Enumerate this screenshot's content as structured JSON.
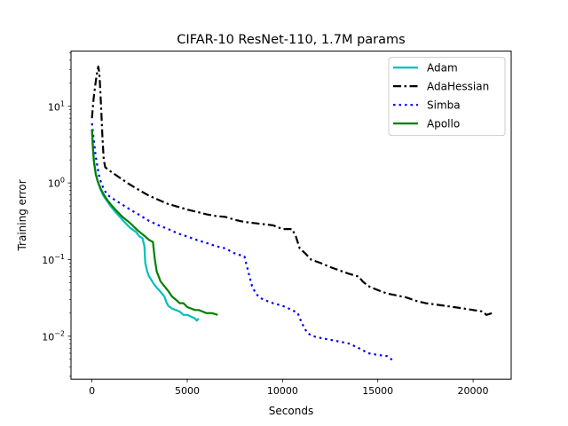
{
  "chart_data": {
    "type": "line",
    "title": "CIFAR-10 ResNet-110, 1.7M params",
    "xlabel": "Seconds",
    "ylabel": "Training error",
    "xlim": [
      -1100,
      22000
    ],
    "ylim_log10": [
      -2.56,
      1.72
    ],
    "yscale": "log",
    "xticks": [
      {
        "value": 0,
        "label": "0"
      },
      {
        "value": 5000,
        "label": "5000"
      },
      {
        "value": 10000,
        "label": "10000"
      },
      {
        "value": 15000,
        "label": "15000"
      },
      {
        "value": 20000,
        "label": "20000"
      }
    ],
    "yticks": [
      {
        "value": 0.01,
        "base": "10",
        "exp": "−2"
      },
      {
        "value": 0.1,
        "base": "10",
        "exp": "−1"
      },
      {
        "value": 1,
        "base": "10",
        "exp": "0"
      },
      {
        "value": 10,
        "base": "10",
        "exp": "1"
      }
    ],
    "legend_position": "top-right",
    "series": [
      {
        "name": "Adam",
        "color": "#00bfbf",
        "style": "solid",
        "x": [
          0,
          50,
          100,
          200,
          300,
          450,
          600,
          800,
          1000,
          1300,
          1600,
          2000,
          2300,
          2500,
          2650,
          2750,
          2800,
          2900,
          3000,
          3100,
          3200,
          3400,
          3600,
          3800,
          3900,
          4000,
          4200,
          4400,
          4600,
          4800,
          5000,
          5200,
          5400,
          5500,
          5600
        ],
        "y": [
          5.0,
          3.0,
          2.0,
          1.3,
          1.05,
          0.82,
          0.68,
          0.58,
          0.49,
          0.4,
          0.33,
          0.26,
          0.23,
          0.2,
          0.19,
          0.15,
          0.09,
          0.07,
          0.06,
          0.055,
          0.05,
          0.043,
          0.038,
          0.033,
          0.028,
          0.025,
          0.023,
          0.022,
          0.021,
          0.019,
          0.019,
          0.018,
          0.017,
          0.016,
          0.017
        ]
      },
      {
        "name": "AdaHessian",
        "color": "#000000",
        "style": "dashdot",
        "x": [
          0,
          80,
          160,
          240,
          300,
          330,
          380,
          420,
          480,
          550,
          620,
          700,
          1000,
          1500,
          2000,
          2500,
          3000,
          3500,
          4000,
          4500,
          5000,
          5500,
          6000,
          6500,
          7000,
          7500,
          8000,
          8500,
          9000,
          9500,
          10000,
          10500,
          10700,
          10900,
          11200,
          11500,
          12000,
          12500,
          13000,
          13500,
          14000,
          14200,
          14500,
          15000,
          15500,
          16000,
          16500,
          17000,
          17500,
          18000,
          18500,
          19000,
          19500,
          20000,
          20500,
          20700,
          21000
        ],
        "y": [
          7.0,
          12.0,
          18.0,
          25.0,
          30.0,
          33.0,
          28.0,
          20.0,
          10.0,
          4.0,
          2.0,
          1.6,
          1.4,
          1.15,
          0.95,
          0.8,
          0.68,
          0.6,
          0.53,
          0.49,
          0.45,
          0.42,
          0.39,
          0.37,
          0.36,
          0.33,
          0.31,
          0.3,
          0.29,
          0.28,
          0.25,
          0.25,
          0.2,
          0.14,
          0.12,
          0.1,
          0.09,
          0.08,
          0.072,
          0.065,
          0.06,
          0.052,
          0.045,
          0.04,
          0.036,
          0.034,
          0.032,
          0.029,
          0.027,
          0.026,
          0.025,
          0.024,
          0.023,
          0.022,
          0.021,
          0.019,
          0.02
        ]
      },
      {
        "name": "Simba",
        "color": "#0000ff",
        "style": "dotted",
        "x": [
          0,
          100,
          200,
          300,
          400,
          600,
          800,
          1200,
          1600,
          2000,
          2500,
          3000,
          3500,
          4000,
          4500,
          5000,
          5500,
          6000,
          6500,
          7000,
          7500,
          8000,
          8200,
          8400,
          8600,
          8800,
          9000,
          9500,
          10000,
          10500,
          10800,
          11000,
          11300,
          11600,
          12000,
          12500,
          13000,
          13500,
          14000,
          14500,
          15000,
          15500,
          15700,
          15900
        ],
        "y": [
          6.0,
          3.5,
          2.2,
          1.55,
          1.15,
          0.85,
          0.7,
          0.6,
          0.52,
          0.45,
          0.38,
          0.32,
          0.28,
          0.25,
          0.22,
          0.2,
          0.18,
          0.165,
          0.15,
          0.14,
          0.12,
          0.11,
          0.07,
          0.045,
          0.036,
          0.032,
          0.03,
          0.027,
          0.025,
          0.022,
          0.02,
          0.015,
          0.011,
          0.01,
          0.0095,
          0.009,
          0.0085,
          0.008,
          0.007,
          0.006,
          0.0057,
          0.0055,
          0.005,
          0.005
        ]
      },
      {
        "name": "Apollo",
        "color": "#008000",
        "style": "solid",
        "x": [
          0,
          50,
          100,
          200,
          300,
          450,
          600,
          800,
          1000,
          1300,
          1600,
          2000,
          2400,
          2800,
          3000,
          3200,
          3300,
          3400,
          3600,
          3800,
          4000,
          4200,
          4400,
          4600,
          4800,
          5000,
          5200,
          5400,
          5600,
          5800,
          6000,
          6300,
          6600
        ],
        "y": [
          5.0,
          2.8,
          1.9,
          1.3,
          1.05,
          0.85,
          0.72,
          0.6,
          0.52,
          0.43,
          0.36,
          0.3,
          0.24,
          0.2,
          0.18,
          0.17,
          0.1,
          0.07,
          0.052,
          0.045,
          0.039,
          0.033,
          0.03,
          0.027,
          0.027,
          0.024,
          0.023,
          0.022,
          0.022,
          0.021,
          0.02,
          0.02,
          0.019
        ]
      }
    ]
  }
}
